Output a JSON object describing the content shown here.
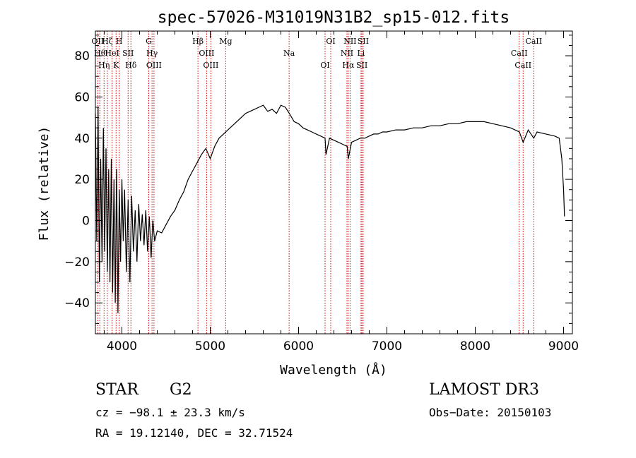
{
  "chart_data": {
    "type": "line",
    "title": "spec-57026-M31019N31B2_sp15-012.fits",
    "xlabel": "Wavelength (Å)",
    "ylabel": "Flux (relative)",
    "xlim": [
      3700,
      9100
    ],
    "ylim": [
      -55,
      92
    ],
    "xticks": [
      {
        "value": 4000,
        "label": "4000"
      },
      {
        "value": 5000,
        "label": "5000"
      },
      {
        "value": 6000,
        "label": "6000"
      },
      {
        "value": 7000,
        "label": "7000"
      },
      {
        "value": 8000,
        "label": "8000"
      },
      {
        "value": 9000,
        "label": "9000"
      }
    ],
    "yticks": [
      {
        "value": -40,
        "label": "−40"
      },
      {
        "value": -20,
        "label": "−20"
      },
      {
        "value": 0,
        "label": "0"
      },
      {
        "value": 20,
        "label": "20"
      },
      {
        "value": 40,
        "label": "40"
      },
      {
        "value": 60,
        "label": "60"
      },
      {
        "value": 80,
        "label": "80"
      }
    ],
    "grid": false,
    "line_color": "#000000",
    "marker_color": "#cc0000",
    "series": [
      {
        "x": [
          3700,
          3715,
          3730,
          3745,
          3760,
          3775,
          3790,
          3805,
          3820,
          3835,
          3850,
          3865,
          3880,
          3895,
          3910,
          3925,
          3940,
          3955,
          3970,
          3985,
          4000,
          4015,
          4030,
          4050,
          4070,
          4090,
          4110,
          4130,
          4150,
          4170,
          4190,
          4210,
          4230,
          4250,
          4270,
          4290,
          4310,
          4330,
          4350,
          4370,
          4400,
          4450,
          4500,
          4550,
          4600,
          4650,
          4700,
          4750,
          4800,
          4850,
          4900,
          4950,
          5000,
          5050,
          5100,
          5150,
          5200,
          5250,
          5300,
          5350,
          5400,
          5450,
          5500,
          5550,
          5600,
          5650,
          5700,
          5750,
          5800,
          5850,
          5895,
          5950,
          6000,
          6050,
          6100,
          6150,
          6200,
          6250,
          6300,
          6310,
          6350,
          6400,
          6450,
          6500,
          6550,
          6563,
          6600,
          6650,
          6700,
          6750,
          6800,
          6850,
          6900,
          6950,
          7000,
          7100,
          7200,
          7300,
          7400,
          7500,
          7600,
          7700,
          7800,
          7900,
          8000,
          8100,
          8200,
          8300,
          8400,
          8500,
          8542,
          8600,
          8662,
          8700,
          8800,
          8900,
          8950,
          8980,
          9000,
          9010
        ],
        "y": [
          52,
          -10,
          55,
          -30,
          30,
          -20,
          45,
          -15,
          35,
          -25,
          25,
          -30,
          30,
          -35,
          20,
          -40,
          25,
          -45,
          15,
          -20,
          20,
          -10,
          15,
          -25,
          10,
          -30,
          12,
          -15,
          5,
          -20,
          8,
          -10,
          3,
          -12,
          5,
          -15,
          2,
          -18,
          0,
          -10,
          -5,
          -6,
          -2,
          2,
          5,
          10,
          14,
          20,
          24,
          28,
          32,
          35,
          30,
          36,
          40,
          42,
          44,
          46,
          48,
          50,
          52,
          53,
          54,
          55,
          56,
          53,
          54,
          52,
          56,
          55,
          52,
          48,
          47,
          45,
          44,
          43,
          42,
          41,
          40,
          32,
          40,
          39,
          38,
          37,
          36,
          30,
          38,
          39,
          40,
          40,
          41,
          42,
          42,
          43,
          43,
          44,
          44,
          45,
          45,
          46,
          46,
          47,
          47,
          48,
          48,
          48,
          47,
          46,
          45,
          43,
          38,
          44,
          40,
          43,
          42,
          41,
          40,
          30,
          15,
          2
        ]
      }
    ],
    "lines": [
      {
        "x": 3726,
        "top": "OII"
      },
      {
        "x": 3750,
        "top": "Hθ"
      },
      {
        "x": 3798,
        "top": "Hη"
      },
      {
        "x": 3835,
        "top": "Hζ"
      },
      {
        "x": 3889,
        "top": "HeI"
      },
      {
        "x": 3934,
        "top": "K"
      },
      {
        "x": 3969,
        "top": "H"
      },
      {
        "x": 4070,
        "top": "SII"
      },
      {
        "x": 4102,
        "top": "Hδ"
      },
      {
        "x": 4304,
        "top": "G"
      },
      {
        "x": 4341,
        "top": "Hγ"
      },
      {
        "x": 4363,
        "top": "OIII"
      },
      {
        "x": 4861,
        "top": "Hβ"
      },
      {
        "x": 4959,
        "top": "OIII"
      },
      {
        "x": 5007,
        "top": "OIII"
      },
      {
        "x": 5175,
        "top": "Mg"
      },
      {
        "x": 5893,
        "top": "Na"
      },
      {
        "x": 6300,
        "top": "OI"
      },
      {
        "x": 6364,
        "top": "OI"
      },
      {
        "x": 6548,
        "top": "NII"
      },
      {
        "x": 6563,
        "top": "Hα"
      },
      {
        "x": 6583,
        "top": "NII"
      },
      {
        "x": 6707,
        "top": "Li"
      },
      {
        "x": 6717,
        "top": "SII"
      },
      {
        "x": 6731,
        "top": "SII"
      },
      {
        "x": 8498,
        "top": "CaII"
      },
      {
        "x": 8542,
        "top": "CaII"
      },
      {
        "x": 8662,
        "top": "CaII"
      }
    ]
  },
  "info": {
    "class": "STAR",
    "subclass": "G2",
    "survey": "LAMOST DR3",
    "cz": "cz = −98.1 ± 23.3 km/s",
    "obs_date": "Obs−Date: 20150103",
    "radec": "RA =  19.12140, DEC =  32.71524"
  }
}
